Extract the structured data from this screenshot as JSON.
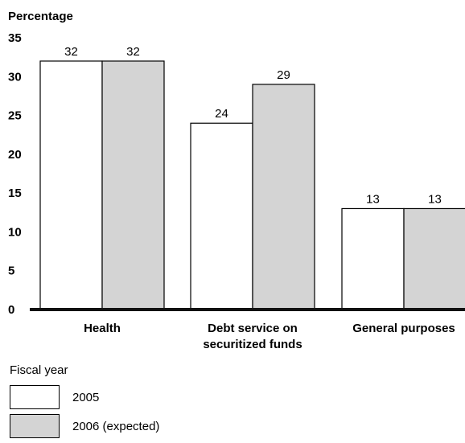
{
  "chart_data": {
    "type": "bar",
    "ylabel": "Percentage",
    "ylim": [
      0,
      35
    ],
    "yticks": [
      0,
      5,
      10,
      15,
      20,
      25,
      30,
      35
    ],
    "categories": [
      [
        "Health"
      ],
      [
        "Debt service on",
        "securitized funds"
      ],
      [
        "General purposes"
      ]
    ],
    "series": [
      {
        "name": "2005",
        "values": [
          32,
          24,
          13
        ],
        "color": "#ffffff"
      },
      {
        "name": "2006 (expected)",
        "values": [
          32,
          29,
          13
        ],
        "color": "#d4d4d4"
      }
    ],
    "legend_title": "Fiscal year",
    "legend_position": "bottom-left",
    "grid": false
  }
}
